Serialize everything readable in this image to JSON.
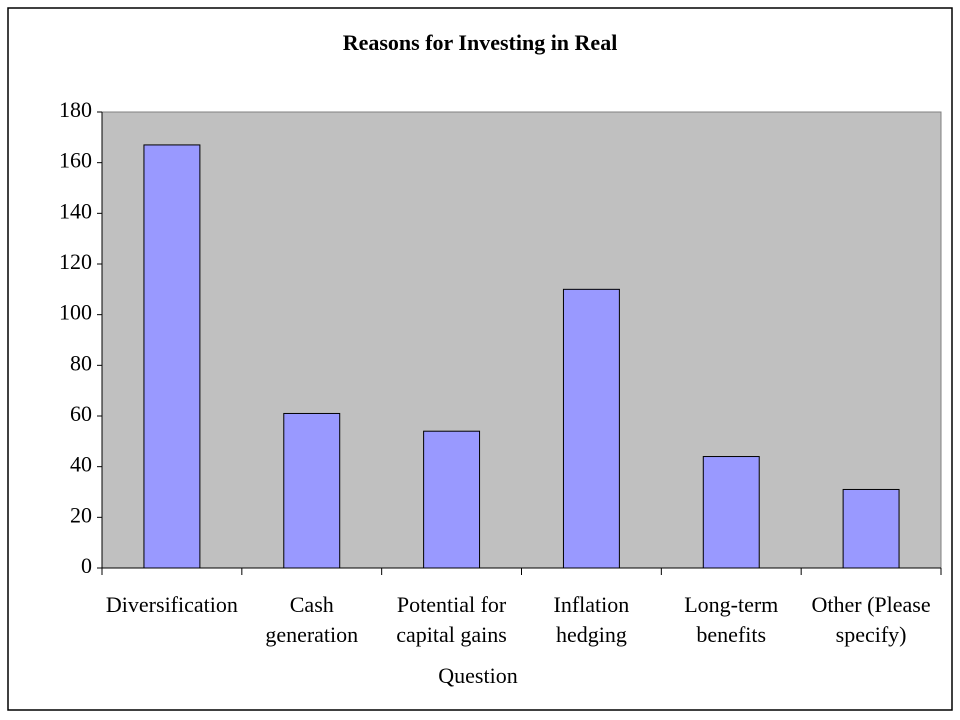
{
  "chart_data": {
    "type": "bar",
    "title": "Reasons for Investing in Real",
    "categories": [
      "Diversification",
      "Cash generation",
      "Potential for capital gains",
      "Inflation hedging",
      "Long-term benefits",
      "Other (Please specify)"
    ],
    "values": [
      167,
      61,
      54,
      110,
      44,
      31
    ],
    "color": "#9999ff",
    "x_label": "Question",
    "ylim": [
      0,
      180
    ],
    "yticks": [
      0,
      20,
      40,
      60,
      80,
      100,
      120,
      140,
      160,
      180
    ],
    "grid": false
  }
}
